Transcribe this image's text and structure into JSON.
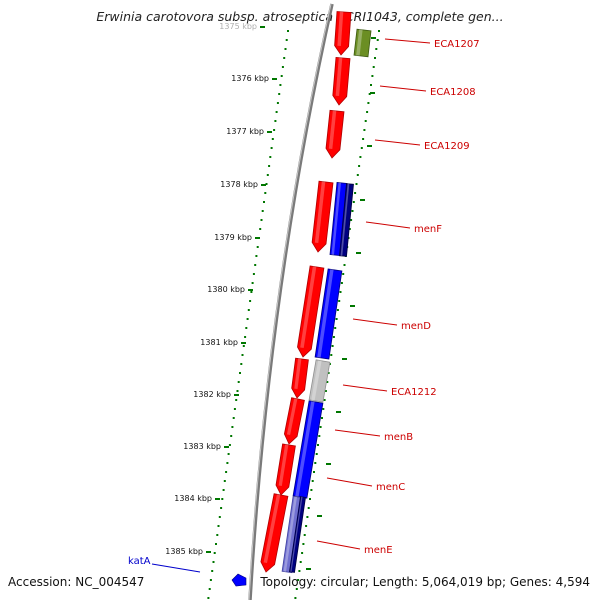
{
  "title": "Erwinia carotovora subsp. atroseptica SCRI1043, complete gen...",
  "footer": {
    "accession": "Accession: NC_004547",
    "summary": "Topology: circular; Length: 5,064,019 bp; Genes: 4,594"
  },
  "ruler": {
    "labels": [
      "1375 kbp",
      "1376 kbp",
      "1377 kbp",
      "1378 kbp",
      "1379 kbp",
      "1380 kbp",
      "1381 kbp",
      "1382 kbp",
      "1383 kbp",
      "1384 kbp",
      "1385 kbp"
    ]
  },
  "gene_labels": [
    "ECA1207",
    "ECA1208",
    "ECA1209",
    "menF",
    "menD",
    "ECA1212",
    "menB",
    "menC",
    "menE"
  ],
  "kata_label": "katA",
  "colors": {
    "forward_gene": "#ff0000",
    "forward_gene_dark": "#b00000",
    "reverse_gene": "#0000ff",
    "reverse_gene_navy": "#000080",
    "grey_gene": "#c0c0c0",
    "olive_gene": "#6b8e23",
    "tick_green": "#007700",
    "backbone": "#808080",
    "label_red": "#cc0000",
    "label_blue": "#0000cc"
  }
}
